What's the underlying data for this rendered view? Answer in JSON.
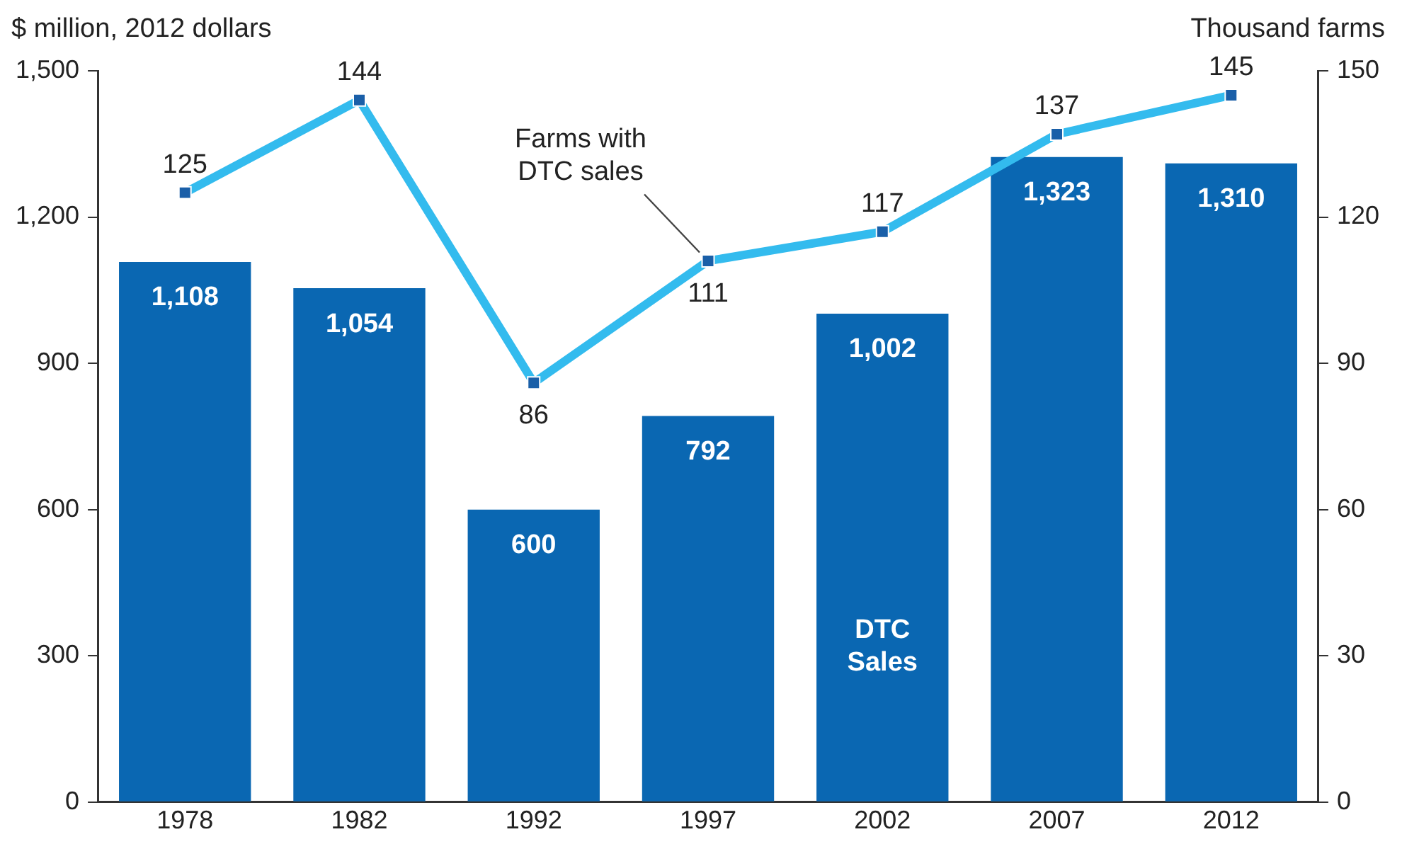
{
  "chart_data": {
    "type": "bar",
    "ylabel": "$ million, 2012 dollars",
    "y2label": "Thousand farms",
    "categories": [
      "1978",
      "1982",
      "1992",
      "1997",
      "2002",
      "2007",
      "2012"
    ],
    "series": [
      {
        "name": "DTC Sales",
        "color": "#0a67b2",
        "values": [
          1108,
          1054,
          600,
          792,
          1002,
          1323,
          1310
        ],
        "value_labels": [
          "1,108",
          "1,054",
          "600",
          "792",
          "1,002",
          "1,323",
          "1,310"
        ]
      },
      {
        "name": "Farms with DTC sales",
        "type": "line",
        "axis": "y2",
        "color": "#33bbee",
        "values": [
          125,
          144,
          86,
          111,
          117,
          137,
          145
        ],
        "value_labels": [
          "125",
          "144",
          "86",
          "111",
          "117",
          "137",
          "145"
        ]
      }
    ],
    "ylim": [
      0,
      1500
    ],
    "yticks": [
      0,
      300,
      600,
      900,
      {
        "value": 1200,
        "label": "1,200"
      },
      {
        "value": 1500,
        "label": "1,500"
      }
    ],
    "y2lim": [
      0,
      150
    ],
    "y2ticks": [
      0,
      30,
      60,
      90,
      120,
      150
    ],
    "marker": "square",
    "grid": false,
    "legend": false
  }
}
